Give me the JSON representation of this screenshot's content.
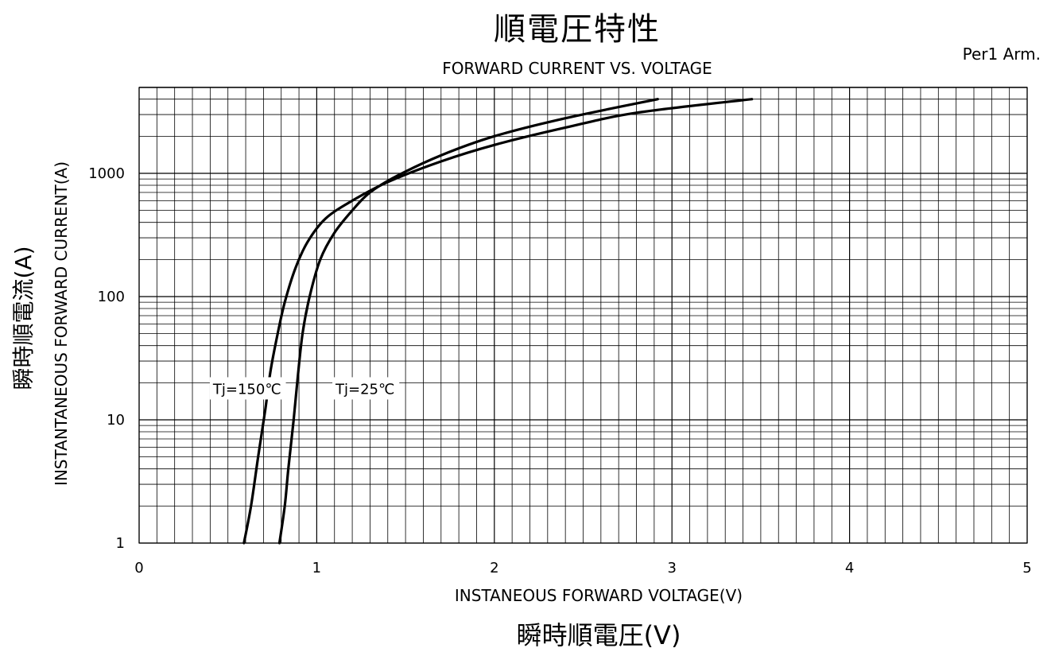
{
  "header": {
    "title_jp": "順電圧特性",
    "subtitle_en": "FORWARD CURRENT VS. VOLTAGE",
    "note": "Per1 Arm."
  },
  "axes": {
    "xlabel_en": "INSTANEOUS FORWARD VOLTAGE(V)",
    "xlabel_jp": "瞬時順電圧(V)",
    "ylabel_jp": "瞬時順電流(A)",
    "ylabel_en": "INSTANTANEOUS FORWARD CURRENT(A)"
  },
  "colors": {
    "grid": "#000000",
    "curve": "#000000",
    "background": "#ffffff"
  },
  "chart_data": {
    "type": "line",
    "title": "順電圧特性",
    "subtitle": "FORWARD CURRENT VS. VOLTAGE",
    "xlabel": "INSTANEOUS FORWARD VOLTAGE(V)",
    "ylabel": "INSTANTANEOUS FORWARD CURRENT(A)",
    "xlim": [
      0,
      5
    ],
    "ylim": [
      1,
      5000
    ],
    "yscale": "log",
    "grid": true,
    "xticks": [
      "0",
      "1",
      "2",
      "3",
      "4",
      "5"
    ],
    "yticks": [
      "1",
      "10",
      "100",
      "1000"
    ],
    "series": [
      {
        "name": "Tj=150℃",
        "points": [
          [
            0.59,
            1
          ],
          [
            0.63,
            2
          ],
          [
            0.67,
            5
          ],
          [
            0.71,
            12
          ],
          [
            0.74,
            25
          ],
          [
            0.78,
            50
          ],
          [
            0.82,
            90
          ],
          [
            0.88,
            170
          ],
          [
            0.95,
            280
          ],
          [
            1.05,
            430
          ],
          [
            1.2,
            600
          ],
          [
            1.4,
            850
          ],
          [
            1.7,
            1250
          ],
          [
            2.0,
            1700
          ],
          [
            2.4,
            2350
          ],
          [
            2.8,
            3100
          ],
          [
            3.45,
            4000
          ]
        ]
      },
      {
        "name": "Tj=25℃",
        "points": [
          [
            0.79,
            1
          ],
          [
            0.82,
            2
          ],
          [
            0.84,
            4
          ],
          [
            0.87,
            10
          ],
          [
            0.89,
            20
          ],
          [
            0.92,
            50
          ],
          [
            0.96,
            100
          ],
          [
            1.02,
            200
          ],
          [
            1.1,
            330
          ],
          [
            1.2,
            500
          ],
          [
            1.3,
            700
          ],
          [
            1.45,
            950
          ],
          [
            1.7,
            1400
          ],
          [
            2.0,
            2000
          ],
          [
            2.4,
            2800
          ],
          [
            2.92,
            4000
          ]
        ]
      }
    ],
    "annotations": [
      {
        "text": "Tj=150℃",
        "x": 0.38,
        "y": 18
      },
      {
        "text": "Tj=25℃",
        "x": 1.07,
        "y": 18
      }
    ]
  }
}
